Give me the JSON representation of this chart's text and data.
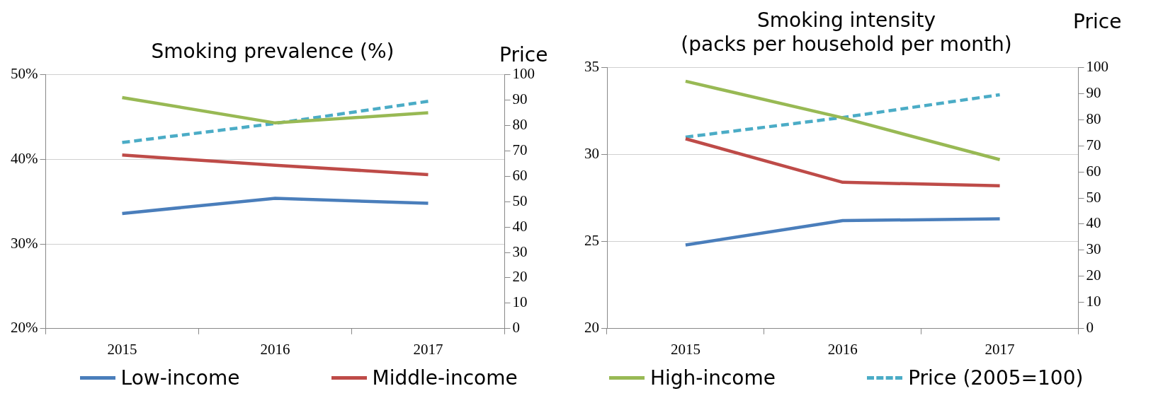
{
  "chart_data": [
    {
      "type": "line",
      "title": "Smoking prevalence (%)",
      "y2label": "Price",
      "categories": [
        "2015",
        "2016",
        "2017"
      ],
      "series": [
        {
          "name": "Low-income",
          "color": "#4a7ebb",
          "values": [
            33.6,
            35.4,
            34.8
          ]
        },
        {
          "name": "Middle-income",
          "color": "#be4b48",
          "values": [
            40.5,
            39.3,
            38.2
          ]
        },
        {
          "name": "High-income",
          "color": "#98b954",
          "values": [
            47.3,
            44.3,
            45.5
          ]
        },
        {
          "name": "Price (2005=100)",
          "color": "#4bacc6",
          "values": [
            73.3,
            80.8,
            89.5
          ],
          "axis": "y2",
          "line_style": "dashed"
        }
      ],
      "ylim": [
        20,
        50
      ],
      "yticks": [
        {
          "value": 20,
          "label": "20%"
        },
        {
          "value": 30,
          "label": "30%"
        },
        {
          "value": 40,
          "label": "40%"
        },
        {
          "value": 50,
          "label": "50%"
        }
      ],
      "y2lim": [
        0,
        100
      ],
      "y2ticks": [
        0,
        10,
        20,
        30,
        40,
        50,
        60,
        70,
        80,
        90,
        100
      ],
      "grid": "y",
      "marker": "none",
      "line_style": "solid",
      "legend": "bottom"
    },
    {
      "type": "line",
      "title": "Smoking intensity\n(packs per household per month)",
      "y2label": "Price",
      "categories": [
        "2015",
        "2016",
        "2017"
      ],
      "series": [
        {
          "color": "#4a7ebb",
          "values": [
            24.8,
            26.2,
            26.3
          ]
        },
        {
          "color": "#be4b48",
          "values": [
            30.9,
            28.4,
            28.2
          ]
        },
        {
          "color": "#98b954",
          "values": [
            34.2,
            32.1,
            29.7
          ]
        },
        {
          "color": "#4bacc6",
          "values": [
            73.3,
            80.8,
            89.5
          ],
          "axis": "y2",
          "line_style": "dashed"
        }
      ],
      "ylim": [
        20,
        35
      ],
      "yticks": [
        20,
        25,
        30,
        35
      ],
      "y2lim": [
        0,
        100
      ],
      "y2ticks": [
        0,
        10,
        20,
        30,
        40,
        50,
        60,
        70,
        80,
        90,
        100
      ],
      "grid": "y",
      "marker": "none",
      "line_style": "solid"
    }
  ]
}
